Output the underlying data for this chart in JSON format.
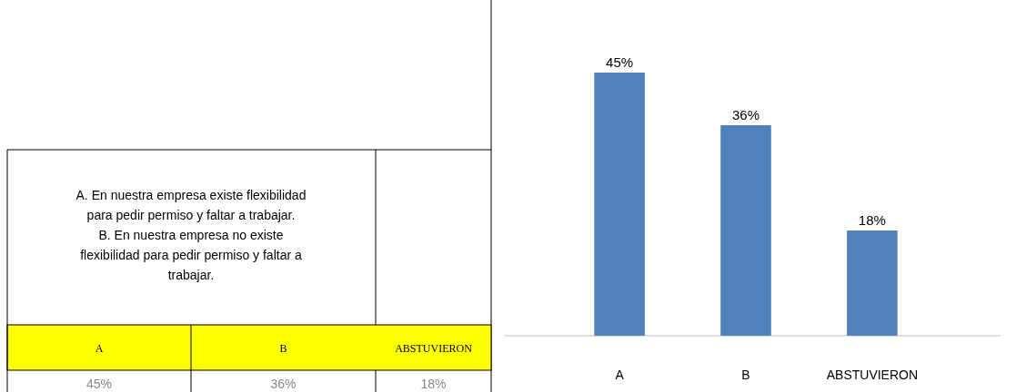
{
  "chart_data": {
    "type": "bar",
    "categories": [
      "A",
      "B",
      "ABSTUVIERON"
    ],
    "values": [
      45,
      36,
      18
    ],
    "color": "#4f81bd",
    "value_labels": [
      "45%",
      "36%",
      "18%"
    ],
    "annotations": [
      "A.   En nuestra empresa existe flexibilidad para pedir permiso y faltar a trabajar.",
      "B.     En nuestra empresa no existe flexibilidad para pedir permiso y faltar a trabajar."
    ]
  }
}
